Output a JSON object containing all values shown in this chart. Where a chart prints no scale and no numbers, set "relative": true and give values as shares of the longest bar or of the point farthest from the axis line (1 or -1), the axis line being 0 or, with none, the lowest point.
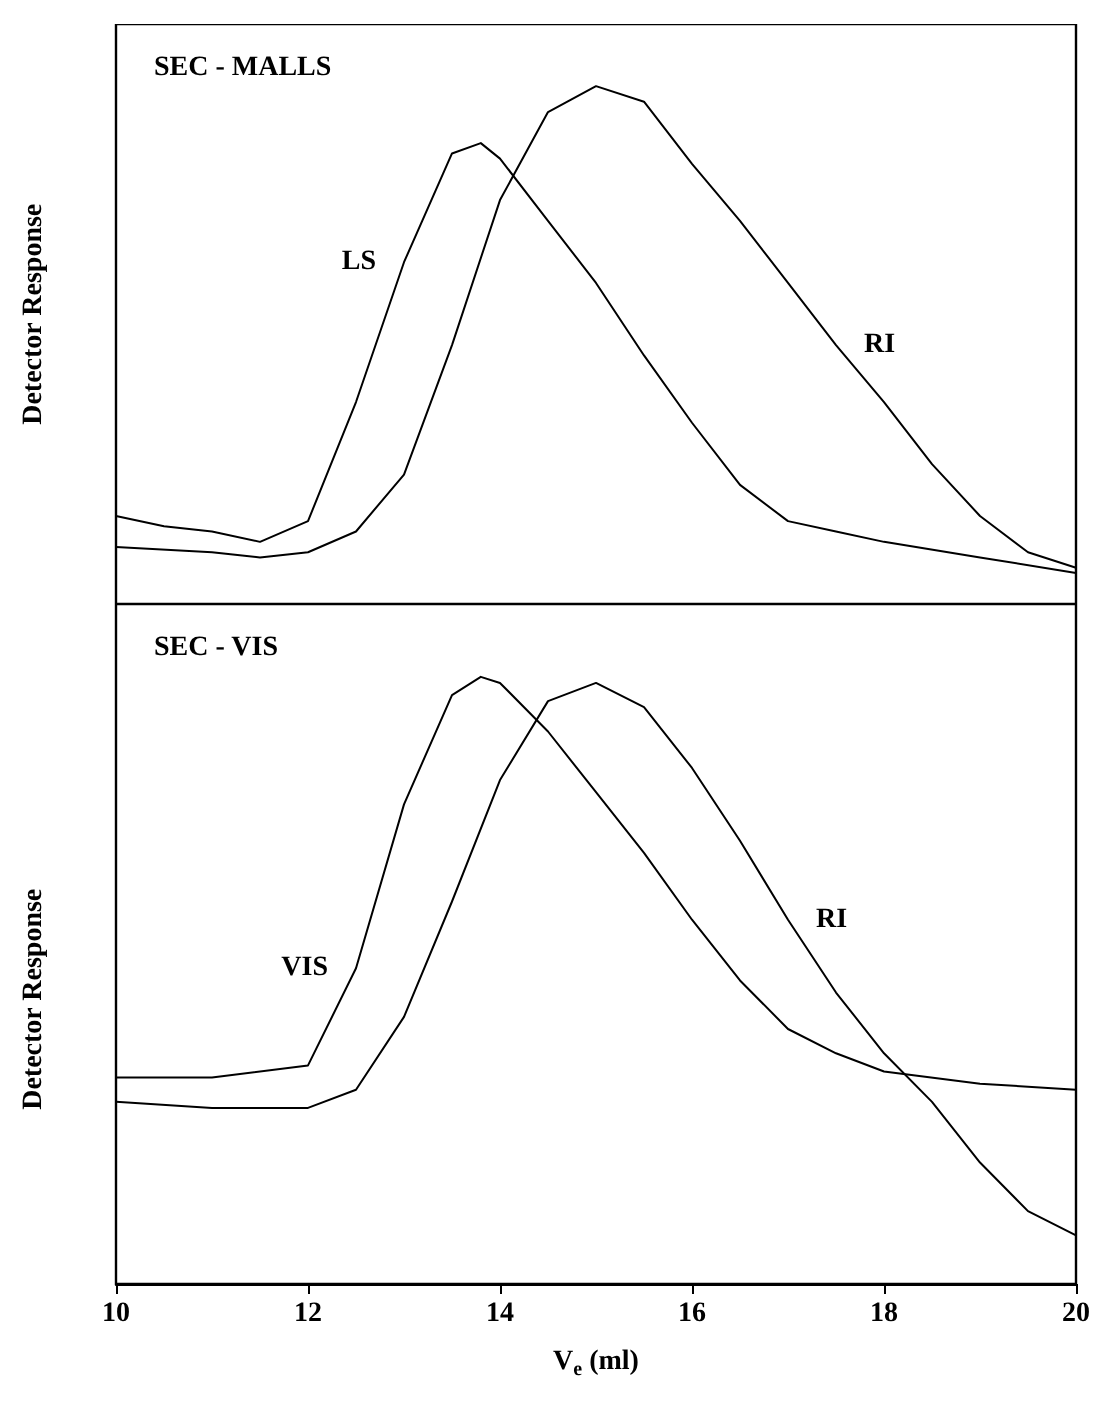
{
  "chart_data": [
    {
      "type": "line",
      "title": "SEC - MALLS",
      "ylabel": "Detector Response",
      "relative": true,
      "xlim": [
        10,
        20
      ],
      "tick_labels": false,
      "legend": false,
      "marker": "none",
      "line_style": "solid",
      "grid": false,
      "series": [
        {
          "name": "LS",
          "color": "#000000",
          "x": [
            10,
            10.5,
            11,
            11.5,
            12,
            12.5,
            13,
            13.5,
            13.8,
            14,
            14.5,
            15,
            15.5,
            16,
            16.5,
            17,
            17.5,
            18,
            19,
            20
          ],
          "values": [
            0.17,
            0.15,
            0.14,
            0.12,
            0.16,
            0.39,
            0.66,
            0.87,
            0.89,
            0.86,
            0.74,
            0.62,
            0.48,
            0.35,
            0.23,
            0.16,
            0.14,
            0.12,
            0.09,
            0.06
          ]
        },
        {
          "name": "RI",
          "color": "#000000",
          "x": [
            10,
            11,
            11.5,
            12,
            12.5,
            13,
            13.5,
            14,
            14.5,
            15,
            15.5,
            16,
            16.5,
            17,
            17.5,
            18,
            18.5,
            19,
            19.5,
            20
          ],
          "values": [
            0.11,
            0.1,
            0.09,
            0.1,
            0.14,
            0.25,
            0.5,
            0.78,
            0.95,
            1.0,
            0.97,
            0.85,
            0.74,
            0.62,
            0.5,
            0.39,
            0.27,
            0.17,
            0.1,
            0.07
          ]
        }
      ]
    },
    {
      "type": "line",
      "title": "SEC - VIS",
      "ylabel": "Detector Response",
      "xlabel": "V$_{e}$ (ml)",
      "relative": true,
      "xlim": [
        10,
        20
      ],
      "xticks": [
        10,
        12,
        14,
        16,
        18,
        20
      ],
      "tick_labels": "x",
      "legend": false,
      "marker": "none",
      "line_style": "solid",
      "grid": false,
      "series": [
        {
          "name": "VIS",
          "color": "#000000",
          "x": [
            10,
            11,
            12,
            12.5,
            13,
            13.5,
            13.8,
            14,
            14.5,
            15,
            15.5,
            16,
            16.5,
            17,
            17.5,
            18,
            19,
            20
          ],
          "values": [
            0.34,
            0.34,
            0.36,
            0.52,
            0.79,
            0.97,
            1.0,
            0.99,
            0.91,
            0.81,
            0.71,
            0.6,
            0.5,
            0.42,
            0.38,
            0.35,
            0.33,
            0.32
          ]
        },
        {
          "name": "RI",
          "color": "#000000",
          "x": [
            10,
            11,
            12,
            12.5,
            13,
            13.5,
            14,
            14.5,
            15,
            15.5,
            16,
            16.5,
            17,
            17.5,
            18,
            18.5,
            19,
            19.5,
            20
          ],
          "values": [
            0.3,
            0.29,
            0.29,
            0.32,
            0.44,
            0.63,
            0.83,
            0.96,
            0.99,
            0.95,
            0.85,
            0.73,
            0.6,
            0.48,
            0.38,
            0.3,
            0.2,
            0.12,
            0.08
          ]
        }
      ]
    }
  ]
}
